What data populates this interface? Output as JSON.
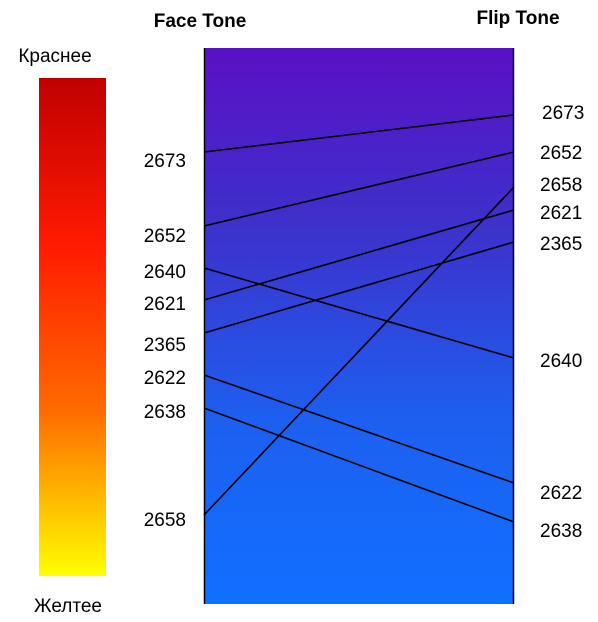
{
  "headers": {
    "face": "Face Tone",
    "flip": "Flip  Tone"
  },
  "scale": {
    "top_label": "Краснее",
    "bottom_label": "Желтее",
    "gradient_colors": [
      "#c00000",
      "#ff1a00",
      "#ff6a00",
      "#ffff00"
    ]
  },
  "panel": {
    "gradient_colors": [
      "#5a10c4",
      "#3c32cc",
      "#1d5ff0",
      "#1070ff"
    ]
  },
  "face_codes": [
    "2673",
    "2652",
    "2640",
    "2621",
    "2365",
    "2622",
    "2638",
    "2658"
  ],
  "flip_codes": [
    "2673",
    "2652",
    "2658",
    "2621",
    "2365",
    "2640",
    "2622",
    "2638"
  ],
  "connections": [
    {
      "code": "2673",
      "face_rank": 1,
      "flip_rank": 1
    },
    {
      "code": "2652",
      "face_rank": 2,
      "flip_rank": 2
    },
    {
      "code": "2640",
      "face_rank": 3,
      "flip_rank": 6
    },
    {
      "code": "2621",
      "face_rank": 4,
      "flip_rank": 4
    },
    {
      "code": "2365",
      "face_rank": 5,
      "flip_rank": 5
    },
    {
      "code": "2622",
      "face_rank": 6,
      "flip_rank": 7
    },
    {
      "code": "2638",
      "face_rank": 7,
      "flip_rank": 8
    },
    {
      "code": "2658",
      "face_rank": 8,
      "flip_rank": 3
    }
  ]
}
